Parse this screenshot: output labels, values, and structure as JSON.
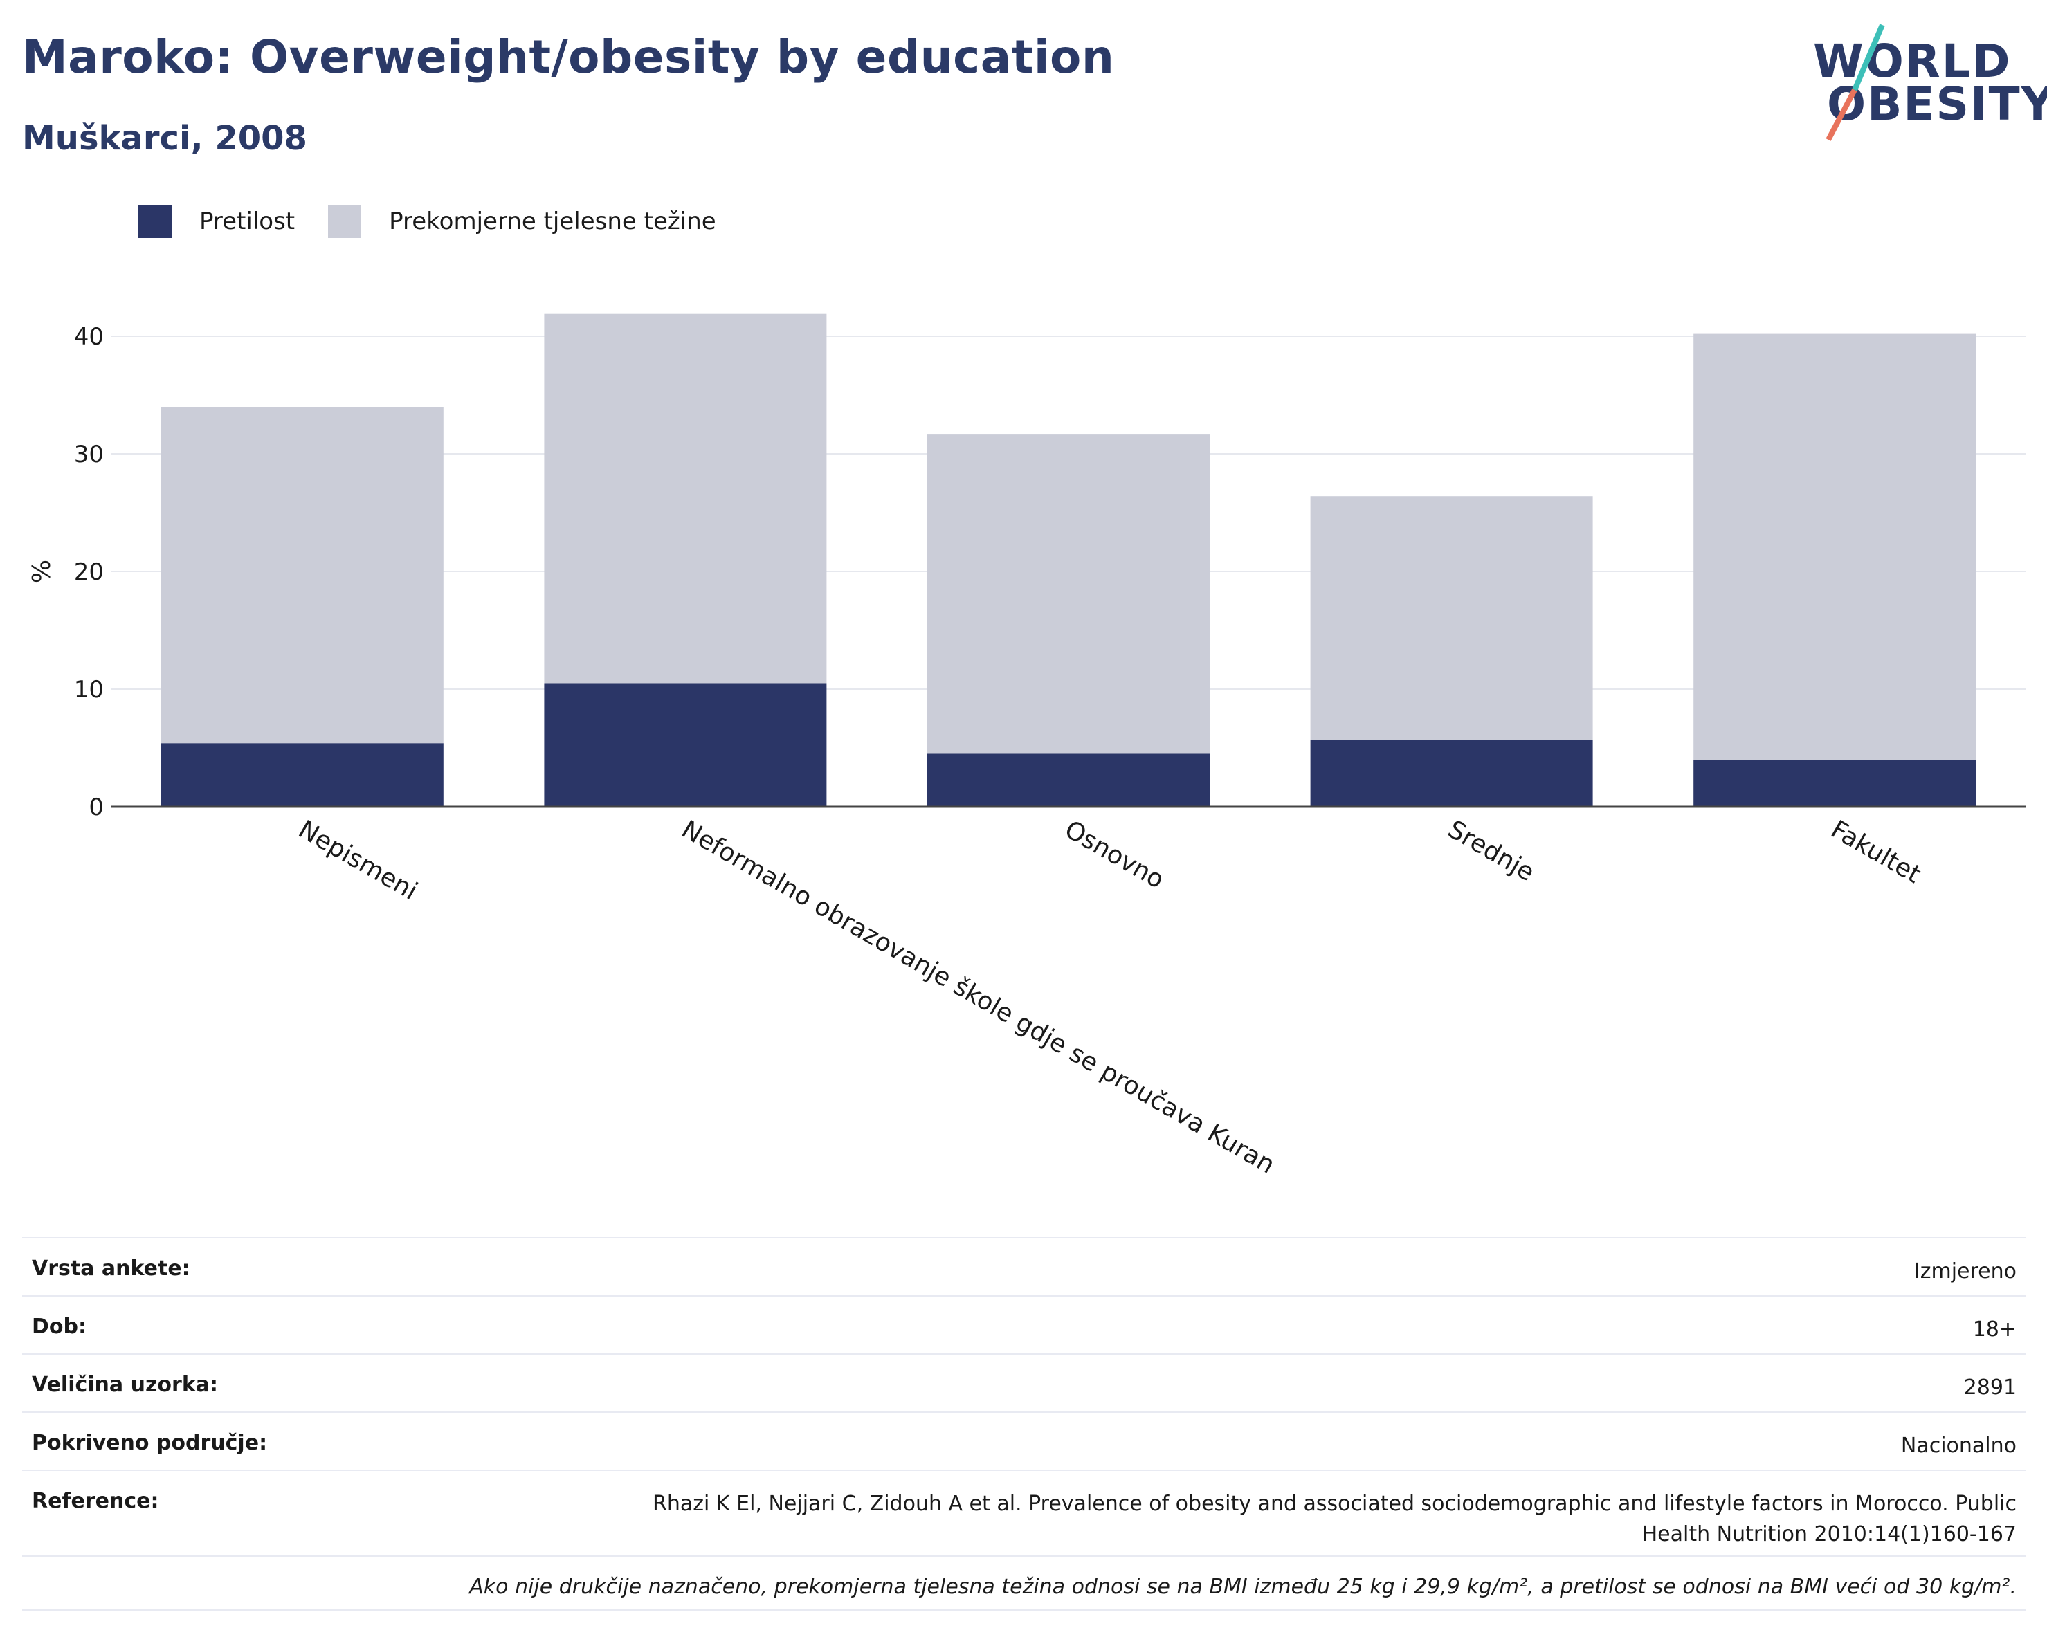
{
  "header": {
    "title": "Maroko: Overweight/obesity by education",
    "subtitle": "Muškarci, 2008"
  },
  "logo": {
    "line1": "WORLD",
    "line2": "OBESITY"
  },
  "legend": [
    {
      "label": "Pretilost",
      "color": "#2b3667"
    },
    {
      "label": "Prekomjerne tjelesne težine",
      "color": "#cbcdd8"
    }
  ],
  "chart_data": {
    "type": "bar",
    "stacked": true,
    "categories": [
      "Nepismeni",
      "Neformalno obrazovanje škole gdje se proučava Kuran",
      "Osnovno",
      "Srednje",
      "Fakultet"
    ],
    "series": [
      {
        "name": "Pretilost",
        "color": "#2b3667",
        "values": [
          5.4,
          10.5,
          4.5,
          5.7,
          4.0
        ]
      },
      {
        "name": "Prekomjerne tjelesne težine",
        "color": "#cbcdd8",
        "values": [
          28.6,
          31.4,
          27.2,
          20.7,
          36.2
        ]
      }
    ],
    "ylabel": "%",
    "ylim": [
      0,
      43
    ],
    "yticks": [
      0,
      10,
      20,
      30,
      40
    ],
    "grid": true
  },
  "info": [
    {
      "key": "Vrsta ankete:",
      "value": "Izmjereno"
    },
    {
      "key": "Dob:",
      "value": "18+"
    },
    {
      "key": "Veličina uzorka:",
      "value": "2891"
    },
    {
      "key": "Pokriveno područje:",
      "value": "Nacionalno"
    },
    {
      "key": "Reference:",
      "value": "Rhazi K El, Nejjari C, Zidouh A et al. Prevalence of obesity and associated sociodemographic and lifestyle factors in Morocco. Public Health Nutrition 2010:14(1)160-167"
    }
  ],
  "footnote": "Ako nije drukčije naznačeno, prekomjerna tjelesna težina odnosi se na BMI između 25 kg i 29,9 kg/m², a pretilost se odnosi na BMI veći od 30 kg/m²."
}
